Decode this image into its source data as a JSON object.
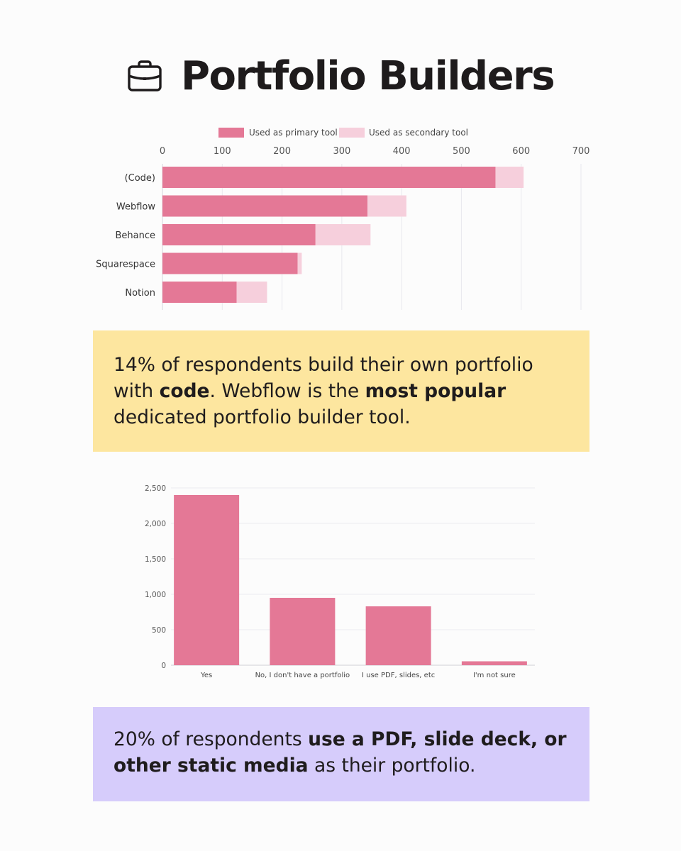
{
  "title": "Portfolio Builders",
  "icon": "briefcase-icon",
  "colors": {
    "primary": "#e47896",
    "secondary": "#f6cfdc",
    "callout_yellow": "#fde69f",
    "callout_purple": "#d6ccfb"
  },
  "chart_data": [
    {
      "type": "bar",
      "orientation": "horizontal",
      "stacked": true,
      "categories": [
        "(Code)",
        "Webflow",
        "Behance",
        "Squarespace",
        "Notion"
      ],
      "series": [
        {
          "name": "Used as primary tool",
          "values": [
            557,
            343,
            256,
            226,
            124
          ]
        },
        {
          "name": "Used as secondary tool",
          "values": [
            47,
            65,
            92,
            7,
            51
          ]
        }
      ],
      "xlim": [
        0,
        700
      ],
      "xticks": [
        "0",
        "100",
        "200",
        "300",
        "400",
        "500",
        "600",
        "700"
      ],
      "legend": "top-center",
      "grid": true
    },
    {
      "type": "bar",
      "categories": [
        "Yes",
        "No, I don't have a portfolio",
        "I use PDF, slides, etc",
        "I'm not sure"
      ],
      "values": [
        2400,
        950,
        830,
        55
      ],
      "ylim": [
        0,
        2500
      ],
      "yticks": [
        "0",
        "500",
        "1,000",
        "1,500",
        "2,000",
        "2,500"
      ],
      "grid": true
    }
  ],
  "callouts": [
    {
      "segments": [
        {
          "text": "14% of respondents build their own portfolio with ",
          "bold": false
        },
        {
          "text": "code",
          "bold": true
        },
        {
          "text": ". Webflow is the ",
          "bold": false
        },
        {
          "text": "most popular",
          "bold": true
        },
        {
          "text": " dedicated portfolio builder tool.",
          "bold": false
        }
      ]
    },
    {
      "segments": [
        {
          "text": "20% of respondents ",
          "bold": false
        },
        {
          "text": "use a PDF, slide deck, or other static media",
          "bold": true
        },
        {
          "text": " as their portfolio.",
          "bold": false
        }
      ]
    }
  ]
}
